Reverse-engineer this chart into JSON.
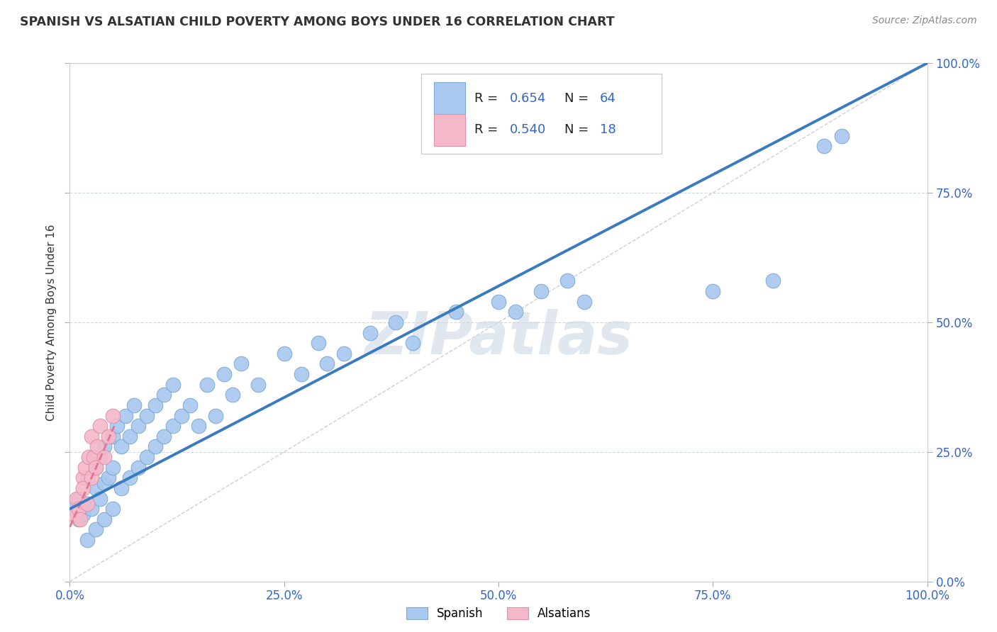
{
  "title": "SPANISH VS ALSATIAN CHILD POVERTY AMONG BOYS UNDER 16 CORRELATION CHART",
  "source": "Source: ZipAtlas.com",
  "ylabel": "Child Poverty Among Boys Under 16",
  "xlim": [
    0,
    1
  ],
  "ylim": [
    0,
    1
  ],
  "xticks": [
    0,
    0.25,
    0.5,
    0.75,
    1.0
  ],
  "yticks": [
    0,
    0.25,
    0.5,
    0.75,
    1.0
  ],
  "xticklabels": [
    "0.0%",
    "25.0%",
    "50.0%",
    "75.0%",
    "100.0%"
  ],
  "yticklabels": [
    "0.0%",
    "25.0%",
    "50.0%",
    "75.0%",
    "100.0%"
  ],
  "spanish_color": "#a8c8f0",
  "spanish_edge": "#7aaad0",
  "alsatian_color": "#f5b8c8",
  "alsatian_edge": "#e090a8",
  "regression_blue": "#3a7abf",
  "regression_pink": "#e87090",
  "diag_color": "#c8d0d8",
  "watermark": "ZIPatlas",
  "watermark_color": "#ccd8e4",
  "spanish_x": [
    0.005,
    0.01,
    0.01,
    0.015,
    0.02,
    0.02,
    0.02,
    0.025,
    0.03,
    0.03,
    0.03,
    0.035,
    0.035,
    0.04,
    0.04,
    0.04,
    0.045,
    0.05,
    0.05,
    0.05,
    0.055,
    0.06,
    0.06,
    0.065,
    0.07,
    0.07,
    0.075,
    0.08,
    0.08,
    0.09,
    0.09,
    0.1,
    0.1,
    0.11,
    0.11,
    0.12,
    0.12,
    0.13,
    0.14,
    0.15,
    0.16,
    0.17,
    0.18,
    0.19,
    0.2,
    0.22,
    0.25,
    0.27,
    0.29,
    0.3,
    0.32,
    0.35,
    0.38,
    0.4,
    0.45,
    0.5,
    0.52,
    0.55,
    0.58,
    0.6,
    0.75,
    0.82,
    0.88,
    0.9
  ],
  "spanish_y": [
    0.14,
    0.12,
    0.16,
    0.13,
    0.08,
    0.15,
    0.2,
    0.14,
    0.1,
    0.18,
    0.22,
    0.16,
    0.24,
    0.12,
    0.19,
    0.26,
    0.2,
    0.14,
    0.22,
    0.28,
    0.3,
    0.18,
    0.26,
    0.32,
    0.2,
    0.28,
    0.34,
    0.22,
    0.3,
    0.24,
    0.32,
    0.26,
    0.34,
    0.28,
    0.36,
    0.3,
    0.38,
    0.32,
    0.34,
    0.3,
    0.38,
    0.32,
    0.4,
    0.36,
    0.42,
    0.38,
    0.44,
    0.4,
    0.46,
    0.42,
    0.44,
    0.48,
    0.5,
    0.46,
    0.52,
    0.54,
    0.52,
    0.56,
    0.58,
    0.54,
    0.56,
    0.58,
    0.84,
    0.86
  ],
  "alsatian_x": [
    0.005,
    0.008,
    0.01,
    0.012,
    0.015,
    0.015,
    0.018,
    0.02,
    0.022,
    0.025,
    0.025,
    0.028,
    0.03,
    0.032,
    0.035,
    0.04,
    0.045,
    0.05
  ],
  "alsatian_y": [
    0.13,
    0.16,
    0.14,
    0.12,
    0.2,
    0.18,
    0.22,
    0.15,
    0.24,
    0.2,
    0.28,
    0.24,
    0.22,
    0.26,
    0.3,
    0.24,
    0.28,
    0.32
  ],
  "blue_line_x": [
    0.0,
    1.0
  ],
  "blue_line_y": [
    0.14,
    1.0
  ],
  "pink_line_x": [
    0.0,
    0.052
  ],
  "pink_line_y": [
    0.105,
    0.3
  ]
}
